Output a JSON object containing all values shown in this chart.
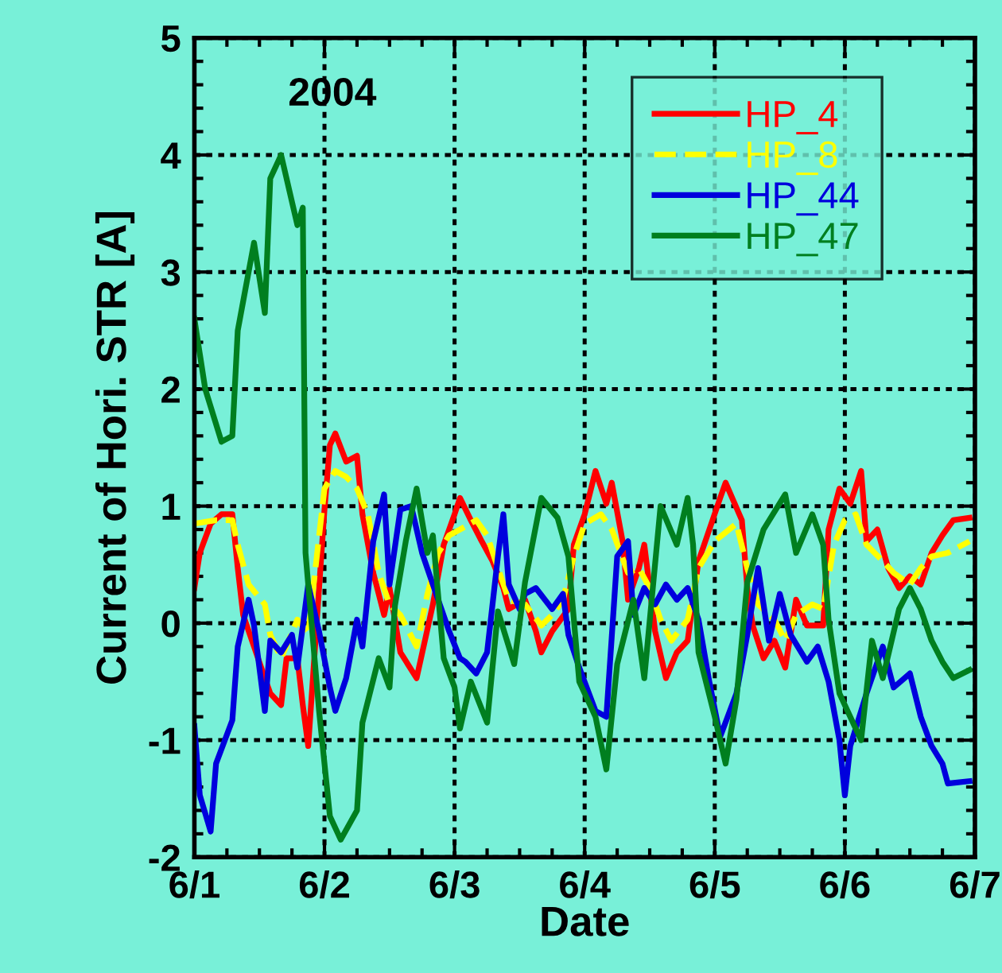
{
  "chart_data": {
    "type": "line",
    "title": "2004",
    "xlabel": "Date",
    "ylabel": "Current of Hori. STR [A]",
    "xlim": [
      "2004-06-01",
      "2004-06-07"
    ],
    "xticks": [
      {
        "value": "2004-06-01",
        "label": "6/1"
      },
      {
        "value": "2004-06-02",
        "label": "6/2"
      },
      {
        "value": "2004-06-03",
        "label": "6/3"
      },
      {
        "value": "2004-06-04",
        "label": "6/4"
      },
      {
        "value": "2004-06-05",
        "label": "6/5"
      },
      {
        "value": "2004-06-06",
        "label": "6/6"
      },
      {
        "value": "2004-06-07",
        "label": "6/7"
      }
    ],
    "ylim": [
      -2,
      5
    ],
    "yticks": [
      -2,
      -1,
      0,
      1,
      2,
      3,
      4,
      5
    ],
    "grid": true,
    "legend": "top right",
    "marker": "none",
    "series": [
      {
        "name": "HP_4",
        "color": "#ff0000",
        "line_style": "solid",
        "x": [
          "2004-06-01T00:00",
          "2004-06-01T01:00",
          "2004-06-01T03:00",
          "2004-06-01T05:00",
          "2004-06-01T07:00",
          "2004-06-01T08:00",
          "2004-06-01T09:00",
          "2004-06-01T11:00",
          "2004-06-01T13:00",
          "2004-06-01T14:00",
          "2004-06-01T16:00",
          "2004-06-01T17:00",
          "2004-06-01T19:00",
          "2004-06-01T20:00",
          "2004-06-01T21:00",
          "2004-06-01T22:00",
          "2004-06-02T00:00",
          "2004-06-02T01:00",
          "2004-06-02T02:00",
          "2004-06-02T04:00",
          "2004-06-02T06:00",
          "2004-06-02T07:00",
          "2004-06-02T09:00",
          "2004-06-02T11:00",
          "2004-06-02T12:00",
          "2004-06-02T14:00",
          "2004-06-02T17:00",
          "2004-06-02T20:00",
          "2004-06-02T22:00",
          "2004-06-03T00:00",
          "2004-06-03T01:00",
          "2004-06-03T03:00",
          "2004-06-03T05:00",
          "2004-06-03T07:00",
          "2004-06-03T09:00",
          "2004-06-03T10:00",
          "2004-06-03T13:00",
          "2004-06-03T15:00",
          "2004-06-03T16:00",
          "2004-06-03T18:00",
          "2004-06-03T21:00",
          "2004-06-03T22:00",
          "2004-06-04T00:00",
          "2004-06-04T02:00",
          "2004-06-04T04:00",
          "2004-06-04T05:00",
          "2004-06-04T07:00",
          "2004-06-04T08:00",
          "2004-06-04T10:00",
          "2004-06-04T11:00",
          "2004-06-04T13:00",
          "2004-06-04T15:00",
          "2004-06-04T17:00",
          "2004-06-04T19:00",
          "2004-06-04T21:00",
          "2004-06-04T23:00",
          "2004-06-05T01:00",
          "2004-06-05T02:00",
          "2004-06-05T05:00",
          "2004-06-05T06:00",
          "2004-06-05T07:00",
          "2004-06-05T09:00",
          "2004-06-05T11:00",
          "2004-06-05T13:00",
          "2004-06-05T15:00",
          "2004-06-05T17:00",
          "2004-06-05T20:00",
          "2004-06-05T21:00",
          "2004-06-05T23:00",
          "2004-06-06T01:00",
          "2004-06-06T03:00",
          "2004-06-06T04:00",
          "2004-06-06T06:00",
          "2004-06-06T08:00",
          "2004-06-06T10:00",
          "2004-06-06T12:00",
          "2004-06-06T14:00",
          "2004-06-06T16:00",
          "2004-06-06T18:00",
          "2004-06-06T20:00",
          "2004-06-06T23:00"
        ],
        "values": [
          0.3,
          0.6,
          0.85,
          0.93,
          0.93,
          0.47,
          0.07,
          -0.2,
          -0.47,
          -0.6,
          -0.7,
          -0.3,
          -0.3,
          -0.7,
          -1.05,
          -0.38,
          0.97,
          1.52,
          1.62,
          1.38,
          1.43,
          0.93,
          0.43,
          0.07,
          0.3,
          -0.25,
          -0.47,
          0.16,
          0.67,
          0.93,
          1.07,
          0.88,
          0.7,
          0.53,
          0.3,
          0.12,
          0.2,
          -0.07,
          -0.25,
          -0.07,
          0.12,
          0.67,
          0.93,
          1.3,
          1.02,
          1.2,
          0.7,
          0.2,
          0.47,
          0.67,
          -0.07,
          -0.47,
          -0.25,
          -0.15,
          0.53,
          0.8,
          1.07,
          1.2,
          0.88,
          0.3,
          -0.02,
          -0.3,
          -0.15,
          -0.38,
          0.2,
          -0.02,
          -0.02,
          0.8,
          1.15,
          1.02,
          1.3,
          0.7,
          0.8,
          0.47,
          0.3,
          0.4,
          0.33,
          0.6,
          0.75,
          0.88,
          0.9
        ]
      },
      {
        "name": "HP_8",
        "color": "#ffff00",
        "line_style": "dashed",
        "x": [
          "2004-06-01T00:00",
          "2004-06-01T04:00",
          "2004-06-01T07:00",
          "2004-06-01T08:00",
          "2004-06-01T10:00",
          "2004-06-01T13:00",
          "2004-06-01T14:00",
          "2004-06-01T16:00",
          "2004-06-01T19:00",
          "2004-06-01T21:00",
          "2004-06-01T22:00",
          "2004-06-02T00:00",
          "2004-06-02T02:00",
          "2004-06-02T04:00",
          "2004-06-02T06:00",
          "2004-06-02T08:00",
          "2004-06-02T10:00",
          "2004-06-02T12:00",
          "2004-06-02T14:00",
          "2004-06-02T17:00",
          "2004-06-02T19:00",
          "2004-06-02T21:00",
          "2004-06-02T23:00",
          "2004-06-03T01:00",
          "2004-06-03T04:00",
          "2004-06-03T06:00",
          "2004-06-03T08:00",
          "2004-06-03T10:00",
          "2004-06-03T13:00",
          "2004-06-03T16:00",
          "2004-06-03T18:00",
          "2004-06-03T20:00",
          "2004-06-03T22:00",
          "2004-06-04T00:00",
          "2004-06-04T03:00",
          "2004-06-04T05:00",
          "2004-06-04T08:00",
          "2004-06-04T10:00",
          "2004-06-04T12:00",
          "2004-06-04T14:00",
          "2004-06-04T16:00",
          "2004-06-04T19:00",
          "2004-06-04T21:00",
          "2004-06-05T00:00",
          "2004-06-05T04:00",
          "2004-06-05T06:00",
          "2004-06-05T08:00",
          "2004-06-05T11:00",
          "2004-06-05T13:00",
          "2004-06-05T15:00",
          "2004-06-05T18:00",
          "2004-06-05T20:00",
          "2004-06-05T22:00",
          "2004-06-06T00:00",
          "2004-06-06T02:00",
          "2004-06-06T04:00",
          "2004-06-06T07:00",
          "2004-06-06T09:00",
          "2004-06-06T12:00",
          "2004-06-06T14:00",
          "2004-06-06T16:00",
          "2004-06-06T19:00",
          "2004-06-06T23:00"
        ],
        "values": [
          0.85,
          0.88,
          0.88,
          0.67,
          0.33,
          0.16,
          -0.1,
          -0.3,
          0.03,
          -0.1,
          0.33,
          1.15,
          1.3,
          1.25,
          1.15,
          0.93,
          0.43,
          0.16,
          0.07,
          -0.2,
          0.25,
          0.6,
          0.75,
          0.8,
          0.88,
          0.75,
          0.47,
          0.2,
          0.16,
          -0.02,
          0.07,
          0.2,
          0.57,
          0.85,
          0.93,
          0.8,
          0.43,
          0.47,
          0.3,
          0.03,
          -0.15,
          0.03,
          0.47,
          0.7,
          0.85,
          0.47,
          0.16,
          0.03,
          -0.15,
          0.07,
          0.16,
          0.12,
          0.67,
          0.88,
          0.93,
          0.67,
          0.53,
          0.43,
          0.33,
          0.47,
          0.57,
          0.6,
          0.7
        ]
      },
      {
        "name": "HP_44",
        "color": "#0000dd",
        "line_style": "solid",
        "x": [
          "2004-06-01T00:00",
          "2004-06-01T01:00",
          "2004-06-01T03:00",
          "2004-06-01T04:00",
          "2004-06-01T07:00",
          "2004-06-01T08:00",
          "2004-06-01T10:00",
          "2004-06-01T11:00",
          "2004-06-01T13:00",
          "2004-06-01T14:00",
          "2004-06-01T16:00",
          "2004-06-01T18:00",
          "2004-06-01T19:00",
          "2004-06-01T21:00",
          "2004-06-01T23:00",
          "2004-06-02T01:00",
          "2004-06-02T02:00",
          "2004-06-02T04:00",
          "2004-06-02T06:00",
          "2004-06-02T07:00",
          "2004-06-02T09:00",
          "2004-06-02T11:00",
          "2004-06-02T12:00",
          "2004-06-02T14:00",
          "2004-06-02T16:00",
          "2004-06-02T18:00",
          "2004-06-02T20:00",
          "2004-06-02T23:00",
          "2004-06-03T01:00",
          "2004-06-03T02:00",
          "2004-06-03T04:00",
          "2004-06-03T06:00",
          "2004-06-03T08:00",
          "2004-06-03T09:00",
          "2004-06-03T10:00",
          "2004-06-03T12:00",
          "2004-06-03T13:00",
          "2004-06-03T15:00",
          "2004-06-03T18:00",
          "2004-06-03T20:00",
          "2004-06-03T21:00",
          "2004-06-03T23:00",
          "2004-06-04T02:00",
          "2004-06-04T04:00",
          "2004-06-04T06:00",
          "2004-06-04T08:00",
          "2004-06-04T09:00",
          "2004-06-04T11:00",
          "2004-06-04T13:00",
          "2004-06-04T15:00",
          "2004-06-04T17:00",
          "2004-06-04T19:00",
          "2004-06-04T21:00",
          "2004-06-04T23:00",
          "2004-06-05T01:00",
          "2004-06-05T04:00",
          "2004-06-05T06:00",
          "2004-06-05T08:00",
          "2004-06-05T10:00",
          "2004-06-05T12:00",
          "2004-06-05T14:00",
          "2004-06-05T17:00",
          "2004-06-05T19:00",
          "2004-06-05T21:00",
          "2004-06-05T23:00",
          "2004-06-06T00:00",
          "2004-06-06T01:00",
          "2004-06-06T04:00",
          "2004-06-06T07:00",
          "2004-06-06T09:00",
          "2004-06-06T12:00",
          "2004-06-06T14:00",
          "2004-06-06T16:00",
          "2004-06-06T18:00",
          "2004-06-06T19:00",
          "2004-06-06T23:00"
        ],
        "values": [
          -0.88,
          -1.47,
          -1.78,
          -1.2,
          -0.83,
          -0.2,
          0.2,
          -0.02,
          -0.75,
          -0.15,
          -0.25,
          -0.1,
          -0.38,
          0.33,
          -0.07,
          -0.55,
          -0.75,
          -0.47,
          0.03,
          -0.2,
          0.7,
          1.1,
          0.33,
          0.97,
          1.0,
          0.6,
          0.33,
          -0.07,
          -0.3,
          -0.33,
          -0.43,
          -0.25,
          0.57,
          0.93,
          0.33,
          0.12,
          0.25,
          0.3,
          0.12,
          0.25,
          -0.1,
          -0.38,
          -0.75,
          -0.8,
          0.57,
          0.7,
          0.07,
          0.3,
          0.16,
          0.33,
          0.2,
          0.3,
          0.03,
          -0.5,
          -0.97,
          -0.6,
          -0.1,
          0.47,
          -0.15,
          0.25,
          -0.1,
          -0.33,
          -0.2,
          -0.5,
          -1.0,
          -1.47,
          -1.05,
          -0.6,
          -0.2,
          -0.55,
          -0.43,
          -0.8,
          -1.05,
          -1.2,
          -1.37,
          -1.35
        ]
      },
      {
        "name": "HP_47",
        "color": "#007f1f",
        "line_style": "solid",
        "x": [
          "2004-06-01T00:00",
          "2004-06-01T02:00",
          "2004-06-01T05:00",
          "2004-06-01T07:00",
          "2004-06-01T08:00",
          "2004-06-01T09:00",
          "2004-06-01T11:00",
          "2004-06-01T13:00",
          "2004-06-01T14:00",
          "2004-06-01T16:00",
          "2004-06-01T19:00",
          "2004-06-01T20:00",
          "2004-06-01T20:30",
          "2004-06-01T23:00",
          "2004-06-02T01:00",
          "2004-06-02T03:00",
          "2004-06-02T06:00",
          "2004-06-02T07:00",
          "2004-06-02T10:00",
          "2004-06-02T12:00",
          "2004-06-02T13:00",
          "2004-06-02T15:00",
          "2004-06-02T17:00",
          "2004-06-02T19:00",
          "2004-06-02T20:00",
          "2004-06-02T22:00",
          "2004-06-03T00:00",
          "2004-06-03T01:00",
          "2004-06-03T03:00",
          "2004-06-03T06:00",
          "2004-06-03T08:00",
          "2004-06-03T11:00",
          "2004-06-03T13:00",
          "2004-06-03T16:00",
          "2004-06-03T19:00",
          "2004-06-03T21:00",
          "2004-06-03T23:00",
          "2004-06-04T02:00",
          "2004-06-04T04:00",
          "2004-06-04T06:00",
          "2004-06-04T09:00",
          "2004-06-04T11:00",
          "2004-06-04T14:00",
          "2004-06-04T17:00",
          "2004-06-04T19:00",
          "2004-06-04T20:00",
          "2004-06-04T21:00",
          "2004-06-05T00:00",
          "2004-06-05T02:00",
          "2004-06-05T04:00",
          "2004-06-05T06:00",
          "2004-06-05T09:00",
          "2004-06-05T13:00",
          "2004-06-05T15:00",
          "2004-06-05T18:00",
          "2004-06-05T20:00",
          "2004-06-05T21:00",
          "2004-06-05T23:00",
          "2004-06-06T01:00",
          "2004-06-06T03:00",
          "2004-06-06T05:00",
          "2004-06-06T07:00",
          "2004-06-06T10:00",
          "2004-06-06T12:00",
          "2004-06-06T14:00",
          "2004-06-06T16:00",
          "2004-06-06T18:00",
          "2004-06-06T20:00",
          "2004-06-06T23:00"
        ],
        "values": [
          2.6,
          2.0,
          1.55,
          1.6,
          2.5,
          2.75,
          3.25,
          2.65,
          3.8,
          4.0,
          3.4,
          3.55,
          0.6,
          -0.75,
          -1.65,
          -1.85,
          -1.6,
          -0.85,
          -0.3,
          -0.55,
          0.15,
          0.7,
          1.15,
          0.6,
          0.75,
          -0.3,
          -0.55,
          -0.9,
          -0.5,
          -0.85,
          0.1,
          -0.35,
          0.35,
          1.07,
          0.9,
          0.57,
          -0.5,
          -0.8,
          -1.25,
          -0.35,
          0.2,
          -0.47,
          1.0,
          0.67,
          1.07,
          0.67,
          -0.25,
          -0.8,
          -1.2,
          -0.65,
          0.35,
          0.8,
          1.1,
          0.6,
          0.93,
          0.67,
          0.03,
          -0.6,
          -0.8,
          -1.0,
          -0.15,
          -0.47,
          0.12,
          0.3,
          0.12,
          -0.15,
          -0.33,
          -0.47,
          -0.4
        ]
      }
    ]
  }
}
